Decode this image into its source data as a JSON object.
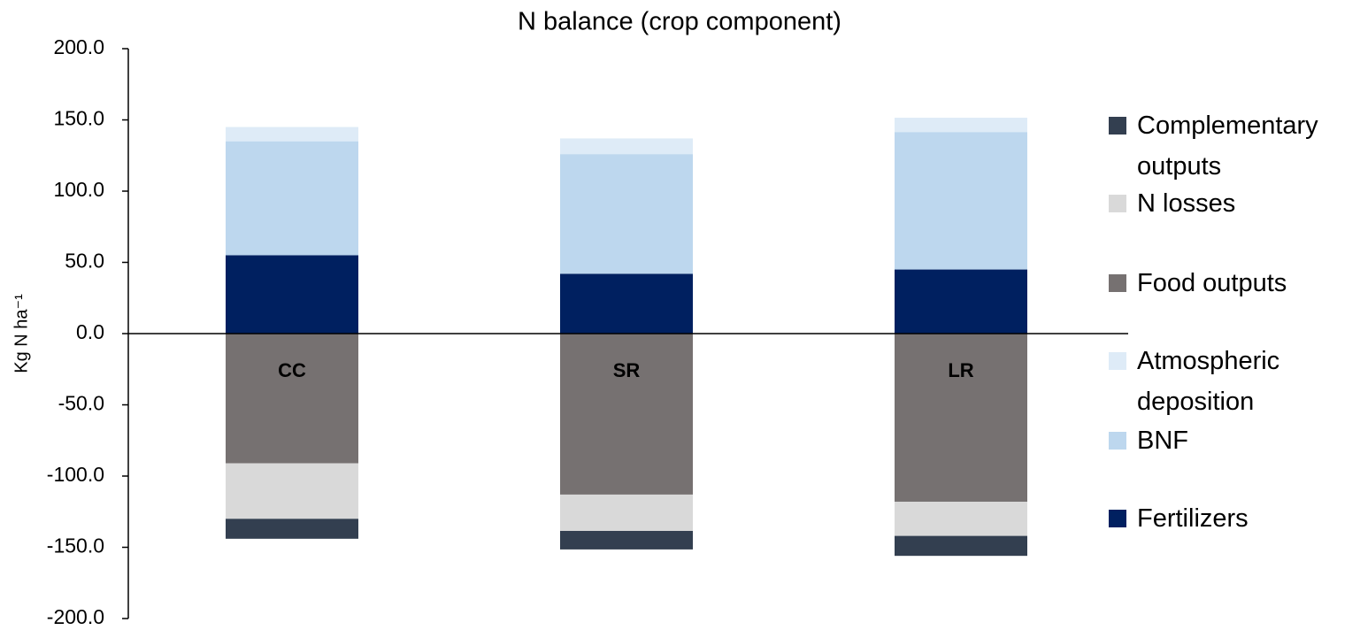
{
  "chart_data": {
    "type": "stacked_bar",
    "title": "N balance (crop component)",
    "y_label": "Kg N ha⁻¹",
    "categories": [
      "CC",
      "SR",
      "LR"
    ],
    "series": [
      {
        "name": "Complementary outputs",
        "color": "#333f50",
        "values": [
          -14,
          -13,
          -14
        ]
      },
      {
        "name": "N losses",
        "color": "#d9d9d9",
        "values": [
          -39,
          -25.5,
          -24
        ]
      },
      {
        "name": "Food outputs",
        "color": "#767171",
        "values": [
          -91,
          -113,
          -118
        ]
      },
      {
        "name": "Atmospheric deposition",
        "color": "#deebf7",
        "values": [
          10,
          11,
          10
        ]
      },
      {
        "name": "BNF",
        "color": "#bdd7ee",
        "values": [
          80,
          84,
          96.5
        ]
      },
      {
        "name": "Fertilizers",
        "color": "#002060",
        "values": [
          55,
          42,
          45
        ]
      }
    ],
    "ylim": [
      -200,
      200
    ],
    "yticks": [
      {
        "value": -200,
        "label": "-200.0"
      },
      {
        "value": -150,
        "label": "-150.0"
      },
      {
        "value": -100,
        "label": "-100.0"
      },
      {
        "value": -50,
        "label": "-50.0"
      },
      {
        "value": 0,
        "label": "0.0"
      },
      {
        "value": 50,
        "label": "50.0"
      },
      {
        "value": 100,
        "label": "100.0"
      },
      {
        "value": 150,
        "label": "150.0"
      },
      {
        "value": 200,
        "label": "200.0"
      }
    ],
    "legend": "right"
  }
}
